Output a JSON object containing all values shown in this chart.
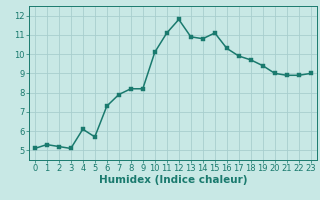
{
  "x": [
    0,
    1,
    2,
    3,
    4,
    5,
    6,
    7,
    8,
    9,
    10,
    11,
    12,
    13,
    14,
    15,
    16,
    17,
    18,
    19,
    20,
    21,
    22,
    23
  ],
  "y": [
    5.1,
    5.3,
    5.2,
    5.1,
    6.1,
    5.7,
    7.3,
    7.9,
    8.2,
    8.2,
    10.1,
    11.1,
    11.8,
    10.9,
    10.8,
    11.1,
    10.3,
    9.9,
    9.7,
    9.4,
    9.0,
    8.9,
    8.9,
    9.0
  ],
  "line_color": "#1a7a6e",
  "marker_color": "#1a7a6e",
  "bg_color": "#c8e8e5",
  "grid_color": "#a8cece",
  "xlabel": "Humidex (Indice chaleur)",
  "xlim": [
    -0.5,
    23.5
  ],
  "ylim": [
    4.5,
    12.5
  ],
  "yticks": [
    5,
    6,
    7,
    8,
    9,
    10,
    11,
    12
  ],
  "xticks": [
    0,
    1,
    2,
    3,
    4,
    5,
    6,
    7,
    8,
    9,
    10,
    11,
    12,
    13,
    14,
    15,
    16,
    17,
    18,
    19,
    20,
    21,
    22,
    23
  ],
  "tick_color": "#1a7a6e",
  "axis_color": "#1a7a6e",
  "xlabel_color": "#1a7a6e",
  "xlabel_fontsize": 7.5,
  "tick_fontsize": 6,
  "linewidth": 1.1,
  "markersize": 2.5
}
